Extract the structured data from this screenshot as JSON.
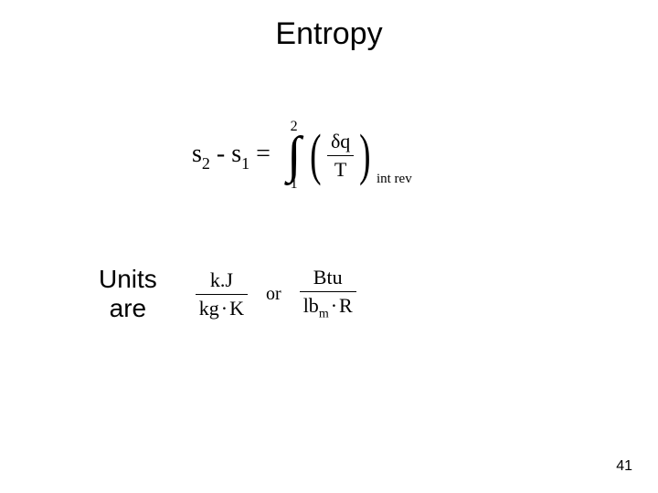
{
  "title": "Entropy",
  "equation": {
    "lhs": {
      "s2": "s",
      "sub2": "2",
      "minus": " - ",
      "s1": "s",
      "sub1": "1",
      "eq": " = "
    },
    "integral": {
      "upper": "2",
      "lower": "1",
      "symbol": "∫"
    },
    "fraction": {
      "numerator": "δq",
      "denominator": "T"
    },
    "subscript_label": "int rev"
  },
  "units": {
    "label_line1": "Units",
    "label_line2": "are",
    "frac1": {
      "num": "k.J",
      "den_a": "kg",
      "dot": "·",
      "den_b": "K"
    },
    "or": "or",
    "frac2": {
      "num": "Btu",
      "den_a": "lb",
      "den_a_sub": "m",
      "dot": "·",
      "den_b": "R"
    }
  },
  "page_number": "41",
  "colors": {
    "text": "#000000",
    "bg": "#ffffff"
  }
}
